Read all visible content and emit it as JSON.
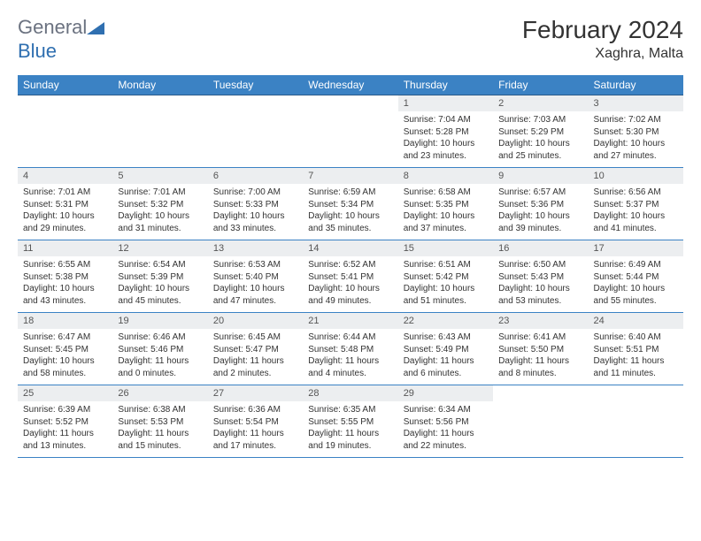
{
  "brand": {
    "part1": "General",
    "part2": "Blue"
  },
  "title": "February 2024",
  "location": "Xaghra, Malta",
  "colors": {
    "header_bg": "#3b82c4",
    "header_text": "#ffffff",
    "daynum_bg": "#eceef0",
    "border": "#3b82c4",
    "logo_gray": "#6b7280",
    "logo_blue": "#2f6fb0"
  },
  "dayNames": [
    "Sunday",
    "Monday",
    "Tuesday",
    "Wednesday",
    "Thursday",
    "Friday",
    "Saturday"
  ],
  "weeks": [
    [
      {
        "num": "",
        "sunrise": "",
        "sunset": "",
        "daylight": ""
      },
      {
        "num": "",
        "sunrise": "",
        "sunset": "",
        "daylight": ""
      },
      {
        "num": "",
        "sunrise": "",
        "sunset": "",
        "daylight": ""
      },
      {
        "num": "",
        "sunrise": "",
        "sunset": "",
        "daylight": ""
      },
      {
        "num": "1",
        "sunrise": "Sunrise: 7:04 AM",
        "sunset": "Sunset: 5:28 PM",
        "daylight": "Daylight: 10 hours and 23 minutes."
      },
      {
        "num": "2",
        "sunrise": "Sunrise: 7:03 AM",
        "sunset": "Sunset: 5:29 PM",
        "daylight": "Daylight: 10 hours and 25 minutes."
      },
      {
        "num": "3",
        "sunrise": "Sunrise: 7:02 AM",
        "sunset": "Sunset: 5:30 PM",
        "daylight": "Daylight: 10 hours and 27 minutes."
      }
    ],
    [
      {
        "num": "4",
        "sunrise": "Sunrise: 7:01 AM",
        "sunset": "Sunset: 5:31 PM",
        "daylight": "Daylight: 10 hours and 29 minutes."
      },
      {
        "num": "5",
        "sunrise": "Sunrise: 7:01 AM",
        "sunset": "Sunset: 5:32 PM",
        "daylight": "Daylight: 10 hours and 31 minutes."
      },
      {
        "num": "6",
        "sunrise": "Sunrise: 7:00 AM",
        "sunset": "Sunset: 5:33 PM",
        "daylight": "Daylight: 10 hours and 33 minutes."
      },
      {
        "num": "7",
        "sunrise": "Sunrise: 6:59 AM",
        "sunset": "Sunset: 5:34 PM",
        "daylight": "Daylight: 10 hours and 35 minutes."
      },
      {
        "num": "8",
        "sunrise": "Sunrise: 6:58 AM",
        "sunset": "Sunset: 5:35 PM",
        "daylight": "Daylight: 10 hours and 37 minutes."
      },
      {
        "num": "9",
        "sunrise": "Sunrise: 6:57 AM",
        "sunset": "Sunset: 5:36 PM",
        "daylight": "Daylight: 10 hours and 39 minutes."
      },
      {
        "num": "10",
        "sunrise": "Sunrise: 6:56 AM",
        "sunset": "Sunset: 5:37 PM",
        "daylight": "Daylight: 10 hours and 41 minutes."
      }
    ],
    [
      {
        "num": "11",
        "sunrise": "Sunrise: 6:55 AM",
        "sunset": "Sunset: 5:38 PM",
        "daylight": "Daylight: 10 hours and 43 minutes."
      },
      {
        "num": "12",
        "sunrise": "Sunrise: 6:54 AM",
        "sunset": "Sunset: 5:39 PM",
        "daylight": "Daylight: 10 hours and 45 minutes."
      },
      {
        "num": "13",
        "sunrise": "Sunrise: 6:53 AM",
        "sunset": "Sunset: 5:40 PM",
        "daylight": "Daylight: 10 hours and 47 minutes."
      },
      {
        "num": "14",
        "sunrise": "Sunrise: 6:52 AM",
        "sunset": "Sunset: 5:41 PM",
        "daylight": "Daylight: 10 hours and 49 minutes."
      },
      {
        "num": "15",
        "sunrise": "Sunrise: 6:51 AM",
        "sunset": "Sunset: 5:42 PM",
        "daylight": "Daylight: 10 hours and 51 minutes."
      },
      {
        "num": "16",
        "sunrise": "Sunrise: 6:50 AM",
        "sunset": "Sunset: 5:43 PM",
        "daylight": "Daylight: 10 hours and 53 minutes."
      },
      {
        "num": "17",
        "sunrise": "Sunrise: 6:49 AM",
        "sunset": "Sunset: 5:44 PM",
        "daylight": "Daylight: 10 hours and 55 minutes."
      }
    ],
    [
      {
        "num": "18",
        "sunrise": "Sunrise: 6:47 AM",
        "sunset": "Sunset: 5:45 PM",
        "daylight": "Daylight: 10 hours and 58 minutes."
      },
      {
        "num": "19",
        "sunrise": "Sunrise: 6:46 AM",
        "sunset": "Sunset: 5:46 PM",
        "daylight": "Daylight: 11 hours and 0 minutes."
      },
      {
        "num": "20",
        "sunrise": "Sunrise: 6:45 AM",
        "sunset": "Sunset: 5:47 PM",
        "daylight": "Daylight: 11 hours and 2 minutes."
      },
      {
        "num": "21",
        "sunrise": "Sunrise: 6:44 AM",
        "sunset": "Sunset: 5:48 PM",
        "daylight": "Daylight: 11 hours and 4 minutes."
      },
      {
        "num": "22",
        "sunrise": "Sunrise: 6:43 AM",
        "sunset": "Sunset: 5:49 PM",
        "daylight": "Daylight: 11 hours and 6 minutes."
      },
      {
        "num": "23",
        "sunrise": "Sunrise: 6:41 AM",
        "sunset": "Sunset: 5:50 PM",
        "daylight": "Daylight: 11 hours and 8 minutes."
      },
      {
        "num": "24",
        "sunrise": "Sunrise: 6:40 AM",
        "sunset": "Sunset: 5:51 PM",
        "daylight": "Daylight: 11 hours and 11 minutes."
      }
    ],
    [
      {
        "num": "25",
        "sunrise": "Sunrise: 6:39 AM",
        "sunset": "Sunset: 5:52 PM",
        "daylight": "Daylight: 11 hours and 13 minutes."
      },
      {
        "num": "26",
        "sunrise": "Sunrise: 6:38 AM",
        "sunset": "Sunset: 5:53 PM",
        "daylight": "Daylight: 11 hours and 15 minutes."
      },
      {
        "num": "27",
        "sunrise": "Sunrise: 6:36 AM",
        "sunset": "Sunset: 5:54 PM",
        "daylight": "Daylight: 11 hours and 17 minutes."
      },
      {
        "num": "28",
        "sunrise": "Sunrise: 6:35 AM",
        "sunset": "Sunset: 5:55 PM",
        "daylight": "Daylight: 11 hours and 19 minutes."
      },
      {
        "num": "29",
        "sunrise": "Sunrise: 6:34 AM",
        "sunset": "Sunset: 5:56 PM",
        "daylight": "Daylight: 11 hours and 22 minutes."
      },
      {
        "num": "",
        "sunrise": "",
        "sunset": "",
        "daylight": ""
      },
      {
        "num": "",
        "sunrise": "",
        "sunset": "",
        "daylight": ""
      }
    ]
  ]
}
